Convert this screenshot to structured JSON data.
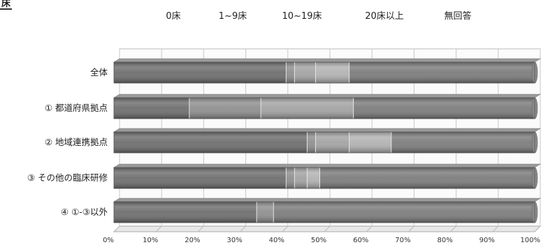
{
  "corner_mark": "床",
  "colors": {
    "bar_dark": "#6e6e6e",
    "bar_mid": "#8f8f8f",
    "bar_light": "#a3a3a3",
    "bar_lighter": "#b3b3b3",
    "bar_end": "#7c7c7c",
    "separator": "#e6e6e6"
  },
  "chart_data": {
    "type": "bar",
    "orientation": "horizontal",
    "stacked": true,
    "legend_position": "top",
    "legend": [
      "0床",
      "1~9床",
      "10~19床",
      "20床以上",
      "無回答"
    ],
    "categories": [
      "全体",
      "① 都道府県拠点",
      "② 地域連携拠点",
      "③ その他の臨床研修",
      "④ ①-③以外"
    ],
    "series": [
      {
        "name": "0床",
        "values": [
          41,
          18,
          46,
          41,
          34
        ]
      },
      {
        "name": "1~9床",
        "values": [
          2,
          17,
          2,
          2,
          4
        ]
      },
      {
        "name": "10~19床",
        "values": [
          5,
          22,
          8,
          3,
          0
        ]
      },
      {
        "name": "20床以上",
        "values": [
          8,
          0,
          10,
          3,
          0
        ]
      },
      {
        "name": "無回答",
        "values": [
          44,
          43,
          34,
          51,
          62
        ]
      }
    ],
    "x_ticks": [
      "0%",
      "10%",
      "20%",
      "30%",
      "40%",
      "50%",
      "60%",
      "70%",
      "80%",
      "90%",
      "100%"
    ],
    "xlim": [
      0,
      100
    ],
    "grid": true
  }
}
